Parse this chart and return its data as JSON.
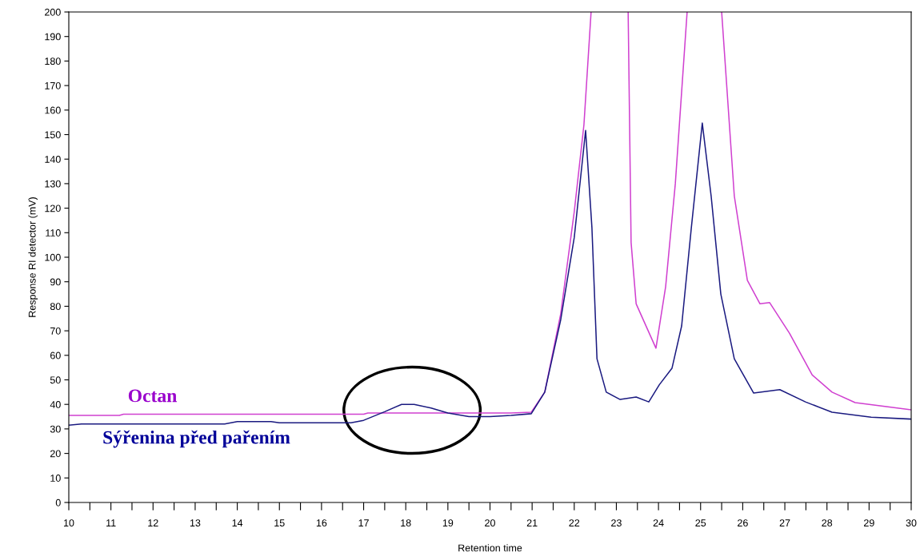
{
  "chart_data": {
    "type": "line",
    "xlabel": "Retention time",
    "ylabel": "Response RI detector (mV)",
    "xlim": [
      10,
      30
    ],
    "ylim": [
      0,
      200
    ],
    "xticks": [
      10,
      {
        "value": 10.5,
        "label": null
      },
      11,
      {
        "value": 11.5,
        "label": null
      },
      12,
      {
        "value": 12.5,
        "label": null
      },
      13,
      {
        "value": 13.5,
        "label": null
      },
      14,
      {
        "value": 14.5,
        "label": null
      },
      15,
      {
        "value": 15.5,
        "label": null
      },
      16,
      {
        "value": 16.5,
        "label": null
      },
      17,
      {
        "value": 17.5,
        "label": null
      },
      18,
      {
        "value": 18.5,
        "label": null
      },
      19,
      {
        "value": 19.5,
        "label": null
      },
      20,
      {
        "value": 20.5,
        "label": null
      },
      21,
      {
        "value": 21.5,
        "label": null
      },
      22,
      {
        "value": 22.5,
        "label": null
      },
      23,
      {
        "value": 23.5,
        "label": null
      },
      24,
      {
        "value": 24.5,
        "label": null
      },
      25,
      {
        "value": 25.5,
        "label": null
      },
      26,
      {
        "value": 26.5,
        "label": null
      },
      27,
      {
        "value": 27.5,
        "label": null
      },
      28,
      {
        "value": 28.5,
        "label": null
      },
      29,
      {
        "value": 29.5,
        "label": null
      },
      30
    ],
    "yticks": [
      0,
      10,
      20,
      30,
      40,
      50,
      60,
      70,
      80,
      90,
      100,
      110,
      120,
      130,
      140,
      150,
      160,
      170,
      180,
      190,
      200
    ],
    "grid": false,
    "legend": false,
    "marker": "none",
    "line_style": "solid",
    "series": [
      {
        "name": "Octan",
        "color": "#d040d0",
        "x": [
          10,
          11.2,
          11.3,
          17,
          17.1,
          20.5,
          20.98,
          21.3,
          21.68,
          22.0,
          22.23,
          22.4,
          22.5,
          23.28,
          23.35,
          23.47,
          23.94,
          24.17,
          24.4,
          24.68,
          25.0,
          25.5,
          25.8,
          26.11,
          26.41,
          26.64,
          27.11,
          27.65,
          28.12,
          28.67,
          30
        ],
        "values": [
          35.5,
          35.5,
          36,
          36,
          36.5,
          36.5,
          36.8,
          45,
          77,
          118.5,
          154,
          200,
          null,
          200,
          106,
          81,
          62.9,
          88,
          130,
          200,
          null,
          200,
          125,
          90.6,
          81,
          81.5,
          69,
          52,
          45,
          40.7,
          37.8
        ]
      },
      {
        "name": "Sýřenina před pařením",
        "color": "#1a1a80",
        "x": [
          10,
          10.3,
          13.7,
          14.0,
          14.8,
          15.0,
          16.7,
          17.0,
          17.5,
          17.9,
          18.2,
          18.6,
          19.0,
          19.5,
          20.0,
          20.5,
          20.98,
          21.3,
          21.68,
          22.0,
          22.27,
          22.42,
          22.54,
          22.76,
          23.09,
          23.47,
          23.77,
          24.02,
          24.32,
          24.55,
          24.78,
          25.04,
          25.25,
          25.48,
          25.8,
          26.26,
          26.88,
          27.49,
          28.12,
          29.05,
          30
        ],
        "values": [
          31.5,
          32,
          32,
          33,
          33,
          32.5,
          32.5,
          33.5,
          37,
          40,
          40,
          38.5,
          36.5,
          35,
          35,
          35.5,
          36.2,
          45,
          74.6,
          108,
          151.7,
          112,
          58.6,
          45,
          42,
          43,
          41,
          48,
          54.7,
          72,
          112,
          154.7,
          125,
          85,
          58.6,
          44.6,
          46,
          41,
          36.8,
          34.8,
          34
        ]
      }
    ]
  }
}
